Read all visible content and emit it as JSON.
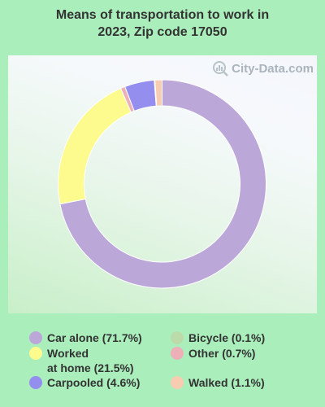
{
  "title_line1": "Means of transportation to work in",
  "title_line2": "2023, Zip code 17050",
  "watermark": "City-Data.com",
  "chart_data": {
    "type": "pie",
    "style": "donut",
    "title": "Means of transportation to work in 2023, Zip code 17050",
    "slices": [
      {
        "label": "Car alone",
        "value": 71.7,
        "color": "#bba8d9"
      },
      {
        "label": "Worked at home",
        "value": 21.5,
        "color": "#fefb8e"
      },
      {
        "label": "Other",
        "value": 0.7,
        "color": "#eeb0b8"
      },
      {
        "label": "Carpooled",
        "value": 4.6,
        "color": "#948eee"
      },
      {
        "label": "Bicycle",
        "value": 0.1,
        "color": "#bbdcaa"
      },
      {
        "label": "Walked",
        "value": 1.1,
        "color": "#f8ccb0"
      }
    ]
  },
  "legend": {
    "car_alone": "Car alone (71.7%)",
    "worked_at_home": "Worked\nat home (21.5%)",
    "carpooled": "Carpooled (4.6%)",
    "bicycle": "Bicycle (0.1%)",
    "other": "Other (0.7%)",
    "walked": "Walked (1.1%)"
  }
}
